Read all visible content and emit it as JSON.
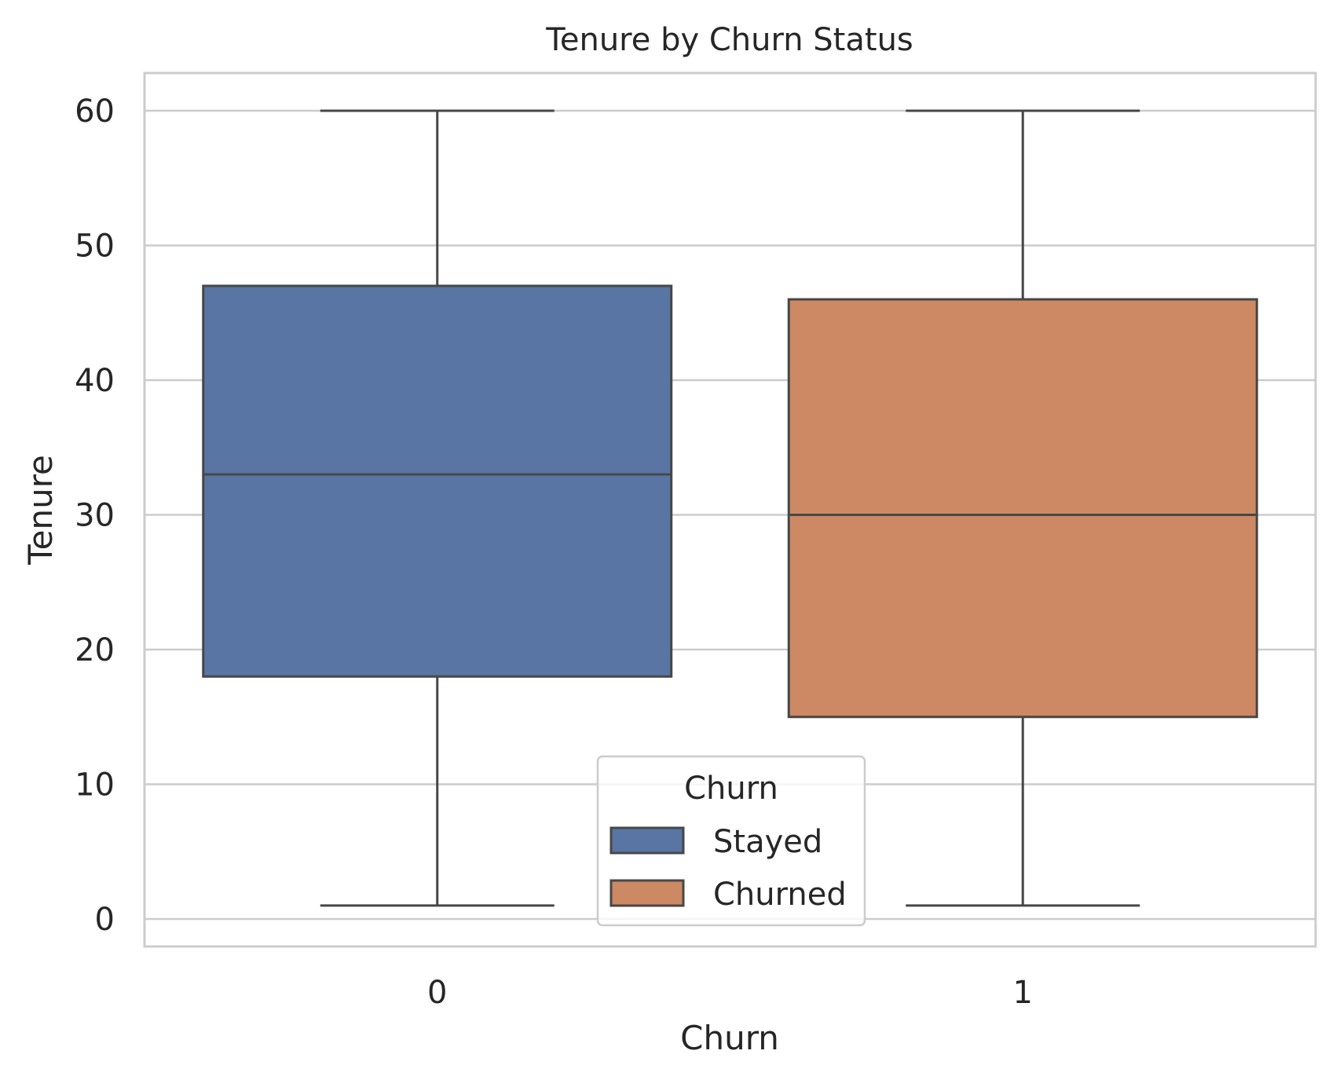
{
  "chart_data": {
    "type": "box",
    "title": "Tenure by Churn Status",
    "xlabel": "Churn",
    "ylabel": "Tenure",
    "ylim": [
      -2,
      63
    ],
    "yticks": [
      0,
      10,
      20,
      30,
      40,
      50,
      60
    ],
    "categories": [
      "0",
      "1"
    ],
    "grid": "horizontal",
    "legend": {
      "title": "Churn",
      "placement": "lower center",
      "entries": [
        "Stayed",
        "Churned"
      ]
    },
    "series": [
      {
        "name": "Stayed",
        "category": "0",
        "color": "#5875a4",
        "min": 1,
        "q1": 18,
        "median": 33,
        "q3": 47,
        "max": 60
      },
      {
        "name": "Churned",
        "category": "1",
        "color": "#cc8963",
        "min": 1,
        "q1": 15,
        "median": 30,
        "q3": 46,
        "max": 60
      }
    ],
    "colors": {
      "line": "#474747",
      "grid": "#cccccc",
      "frame": "#cccccc"
    }
  }
}
